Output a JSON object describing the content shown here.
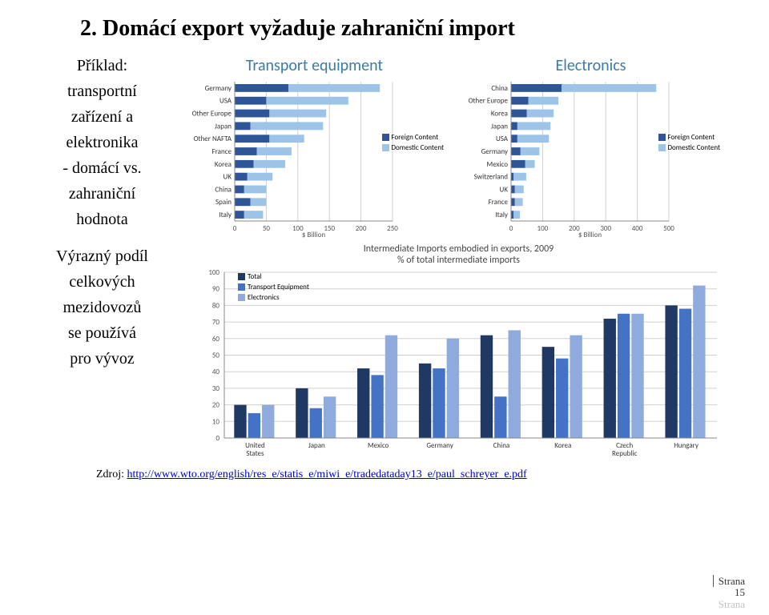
{
  "title": "2. Domácí export vyžaduje zahraniční import",
  "side": {
    "p1a": "Příklad:",
    "p1b": "transportní",
    "p1c": "zařízení a",
    "p1d": "elektronika",
    "p1e": "- domácí vs.",
    "p1f": "zahraniční",
    "p1g": "hodnota",
    "p2a": "Výrazný podíl",
    "p2b": "celkových",
    "p2c": "mezidovozů",
    "p2d": "se používá",
    "p2e": "pro vývoz"
  },
  "colors": {
    "foreign": "#2f5597",
    "domestic": "#9dc3e6",
    "total": "#203864",
    "transport": "#4472c4",
    "electronics": "#8faadc",
    "grid": "#d0d0d0",
    "axis": "#888888"
  },
  "chart1": {
    "title": "Transport equipment",
    "type": "stacked-horizontal-bar",
    "xmax": 250,
    "xstep": 50,
    "xlabel": "$ Billion",
    "legend": {
      "foreign": "Foreign Content",
      "domestic": "Domestic Content"
    },
    "rows": [
      {
        "label": "Germany",
        "foreign": 85,
        "domestic": 145
      },
      {
        "label": "USA",
        "foreign": 50,
        "domestic": 130
      },
      {
        "label": "Other Europe",
        "foreign": 55,
        "domestic": 90
      },
      {
        "label": "Japan",
        "foreign": 25,
        "domestic": 115
      },
      {
        "label": "Other NAFTA",
        "foreign": 55,
        "domestic": 55
      },
      {
        "label": "France",
        "foreign": 35,
        "domestic": 55
      },
      {
        "label": "Korea",
        "foreign": 30,
        "domestic": 50
      },
      {
        "label": "UK",
        "foreign": 20,
        "domestic": 40
      },
      {
        "label": "China",
        "foreign": 15,
        "domestic": 35
      },
      {
        "label": "Spain",
        "foreign": 25,
        "domestic": 25
      },
      {
        "label": "Italy",
        "foreign": 15,
        "domestic": 30
      }
    ]
  },
  "chart2": {
    "title": "Electronics",
    "type": "stacked-horizontal-bar",
    "xmax": 500,
    "xstep": 100,
    "xlabel": "$ Billion",
    "legend": {
      "foreign": "Foreign Content",
      "domestic": "Domestic Content"
    },
    "rows": [
      {
        "label": "China",
        "foreign": 160,
        "domestic": 300
      },
      {
        "label": "Other Europe",
        "foreign": 55,
        "domestic": 95
      },
      {
        "label": "Korea",
        "foreign": 50,
        "domestic": 85
      },
      {
        "label": "Japan",
        "foreign": 20,
        "domestic": 105
      },
      {
        "label": "USA",
        "foreign": 20,
        "domestic": 100
      },
      {
        "label": "Germany",
        "foreign": 30,
        "domestic": 60
      },
      {
        "label": "Mexico",
        "foreign": 45,
        "domestic": 30
      },
      {
        "label": "Switzerland",
        "foreign": 8,
        "domestic": 40
      },
      {
        "label": "UK",
        "foreign": 12,
        "domestic": 28
      },
      {
        "label": "France",
        "foreign": 12,
        "domestic": 25
      },
      {
        "label": "Italy",
        "foreign": 8,
        "domestic": 20
      }
    ]
  },
  "chart3": {
    "title_l1": "Intermediate Imports embodied in exports, 2009",
    "title_l2": "% of total intermediate imports",
    "type": "grouped-vertical-bar",
    "ymax": 100,
    "ystep": 10,
    "series_labels": {
      "total": "Total",
      "transport": "Transport Equipment",
      "electronics": "Electronics"
    },
    "cats": [
      {
        "label": "United\nStates",
        "total": 20,
        "transport": 15,
        "electronics": 20
      },
      {
        "label": "Japan",
        "total": 30,
        "transport": 18,
        "electronics": 25
      },
      {
        "label": "Mexico",
        "total": 42,
        "transport": 38,
        "electronics": 62
      },
      {
        "label": "Germany",
        "total": 45,
        "transport": 42,
        "electronics": 60
      },
      {
        "label": "China",
        "total": 62,
        "transport": 25,
        "electronics": 65
      },
      {
        "label": "Korea",
        "total": 55,
        "transport": 48,
        "electronics": 62
      },
      {
        "label": "Czech\nRepublic",
        "total": 72,
        "transport": 75,
        "electronics": 75
      },
      {
        "label": "Hungary",
        "total": 80,
        "transport": 78,
        "electronics": 92
      }
    ]
  },
  "source_prefix": "Zdroj: ",
  "source_url": "http://www.wto.org/english/res_e/statis_e/miwi_e/tradedataday13_e/paul_schreyer_e.pdf",
  "footer_text": "Strana",
  "page_number": "15",
  "footer_text2": "Strana"
}
